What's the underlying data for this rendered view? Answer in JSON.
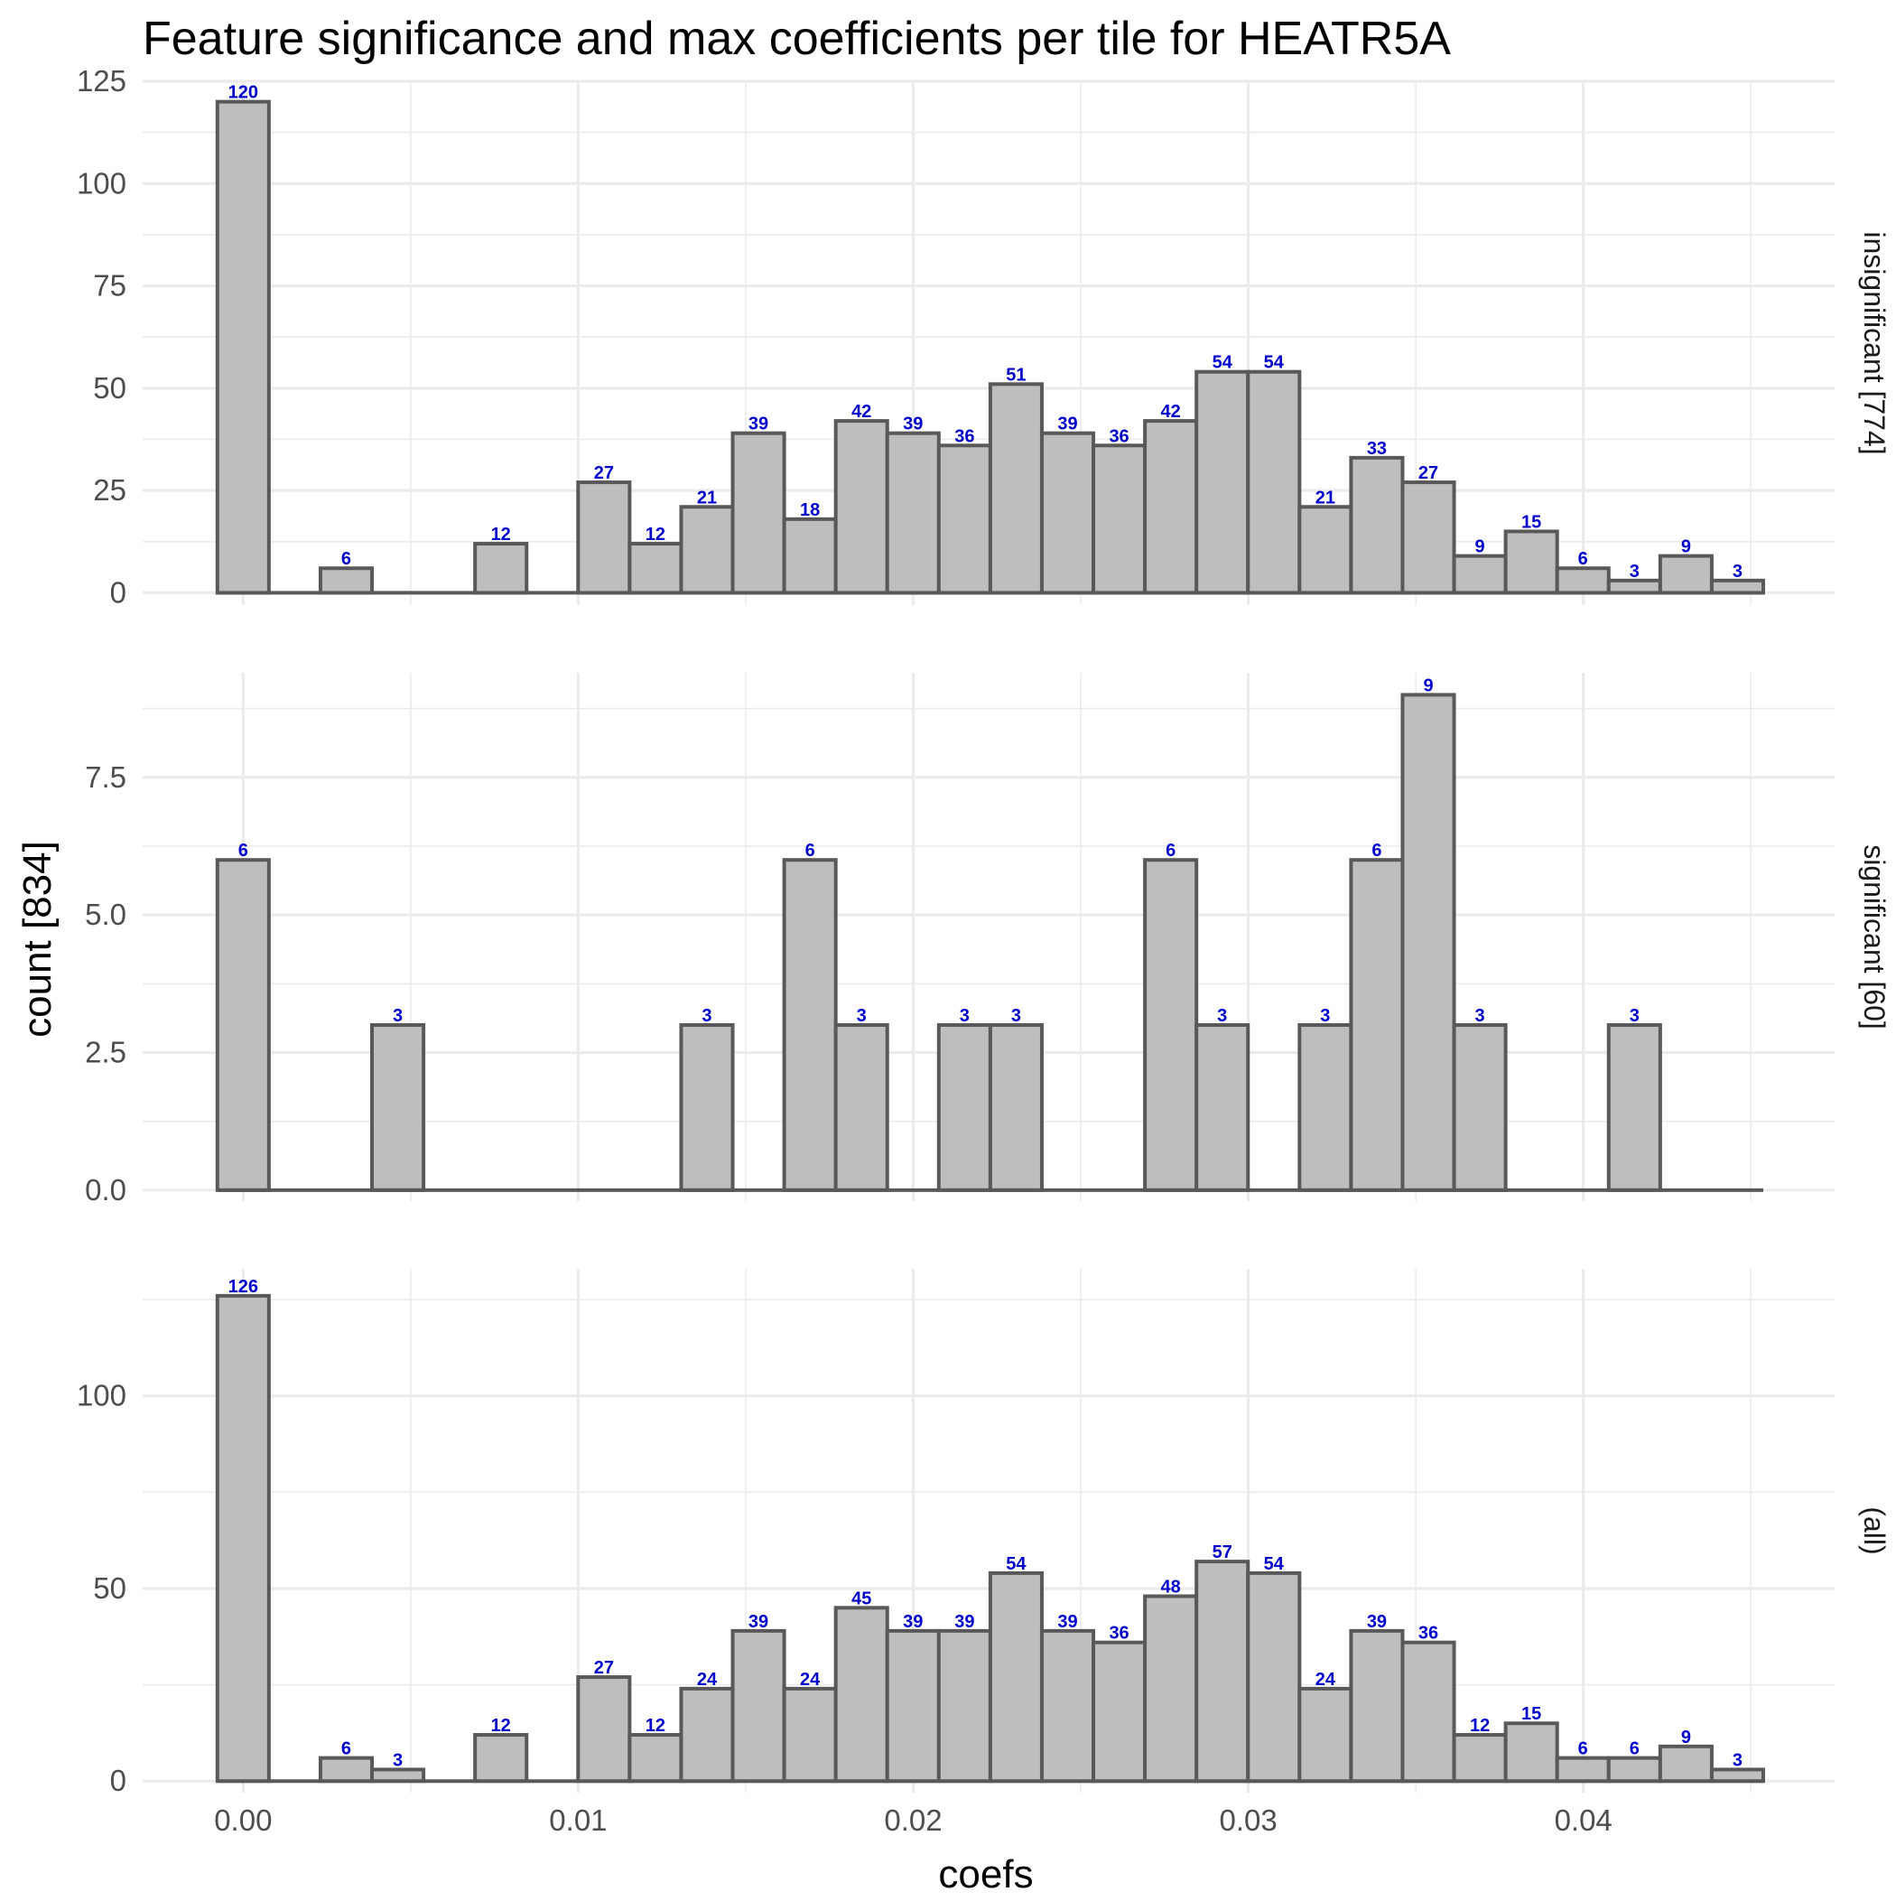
{
  "chart_data": {
    "type": "bar",
    "chart_kind": "faceted histogram",
    "title": "Feature significance and max coefficients per tile for HEATR5A",
    "xlabel": "coefs",
    "ylabel": "count [834]",
    "bin_width": 0.001538,
    "first_bin_center": 0.0,
    "xlim": [
      -0.003,
      0.0475
    ],
    "x_ticks": [
      0.0,
      0.01,
      0.02,
      0.03,
      0.04
    ],
    "x_tick_labels": [
      "0.00",
      "0.01",
      "0.02",
      "0.03",
      "0.04"
    ],
    "grid": true,
    "bar_fill": "#bebebe",
    "bar_outline": "#595959",
    "label_color": "#0000cc",
    "facets": [
      {
        "label": "insignificant [774]",
        "ylim": [
          -3,
          125
        ],
        "y_ticks": [
          0,
          25,
          50,
          75,
          100,
          125
        ],
        "y_tick_labels": [
          "0",
          "25",
          "50",
          "75",
          "100",
          "125"
        ],
        "values": [
          120,
          0,
          6,
          0,
          0,
          12,
          0,
          27,
          12,
          21,
          39,
          18,
          42,
          39,
          36,
          51,
          39,
          36,
          42,
          54,
          54,
          21,
          33,
          27,
          9,
          15,
          6,
          3,
          9,
          3
        ]
      },
      {
        "label": "significant [60]",
        "ylim": [
          -0.2,
          9.4
        ],
        "y_ticks": [
          0,
          2.5,
          5,
          7.5
        ],
        "y_tick_labels": [
          "0.0",
          "2.5",
          "5.0",
          "7.5"
        ],
        "values": [
          6,
          0,
          0,
          3,
          0,
          0,
          0,
          0,
          0,
          3,
          0,
          6,
          3,
          0,
          3,
          3,
          0,
          0,
          6,
          3,
          0,
          3,
          6,
          9,
          3,
          0,
          0,
          3,
          0,
          0
        ]
      },
      {
        "label": "(all)",
        "ylim": [
          -3,
          133
        ],
        "y_ticks": [
          0,
          50,
          100
        ],
        "y_tick_labels": [
          "0",
          "50",
          "100"
        ],
        "values": [
          126,
          0,
          6,
          3,
          0,
          12,
          0,
          27,
          12,
          24,
          39,
          24,
          45,
          39,
          39,
          54,
          39,
          36,
          48,
          57,
          54,
          24,
          39,
          36,
          12,
          15,
          6,
          6,
          9,
          3
        ]
      }
    ]
  }
}
